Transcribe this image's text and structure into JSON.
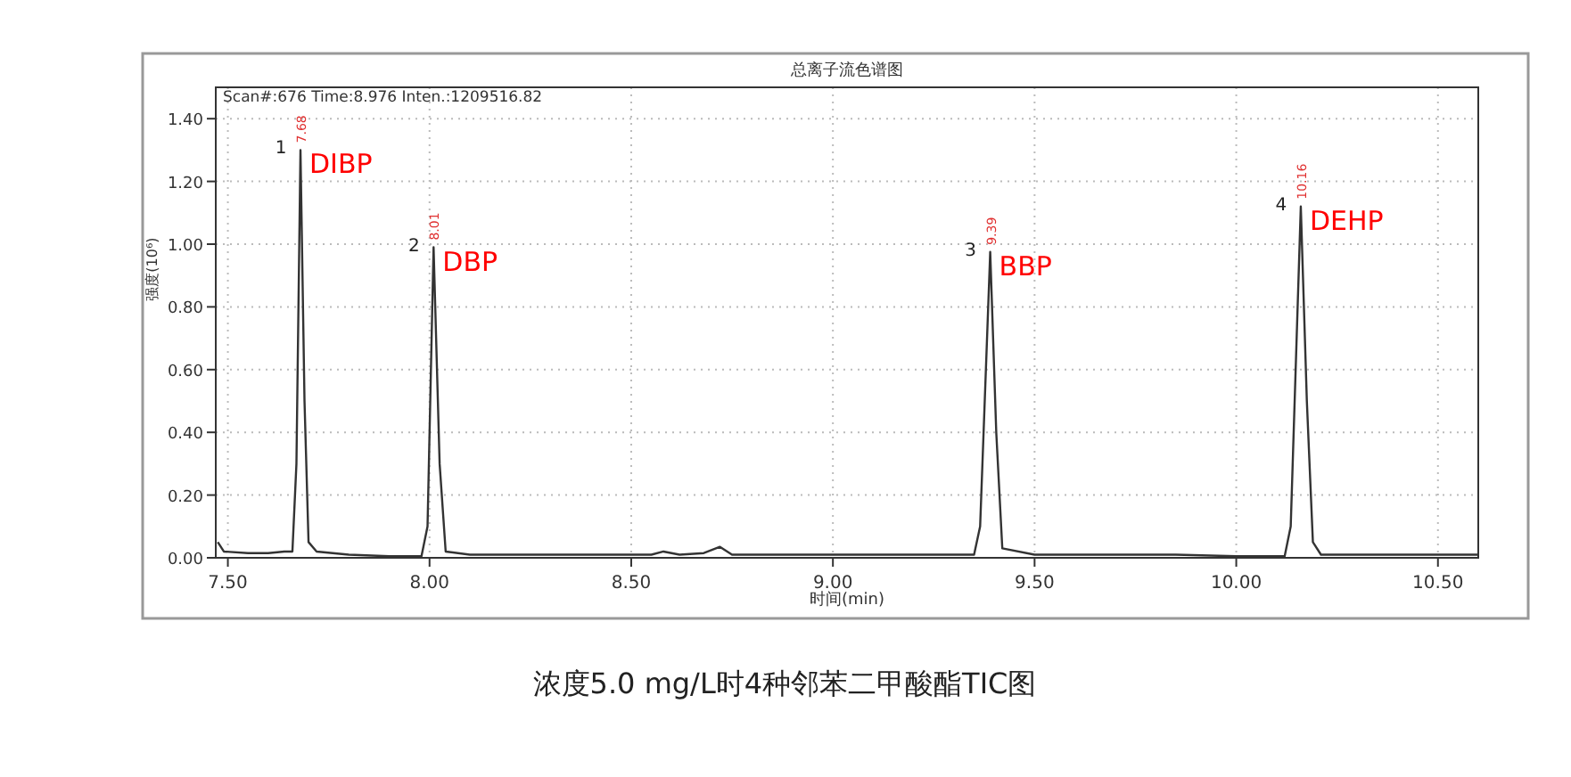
{
  "chart_data": {
    "type": "line",
    "title": "总离子流色谱图",
    "xlabel": "时间(min)",
    "ylabel": "强度(10⁶)",
    "x": [
      7.475,
      7.49,
      7.55,
      7.6,
      7.64,
      7.66,
      7.67,
      7.68,
      7.69,
      7.7,
      7.72,
      7.8,
      7.9,
      7.98,
      7.995,
      8.01,
      8.025,
      8.04,
      8.1,
      8.3,
      8.5,
      8.55,
      8.58,
      8.62,
      8.68,
      8.72,
      8.75,
      8.9,
      9.0,
      9.2,
      9.35,
      9.365,
      9.39,
      9.405,
      9.42,
      9.5,
      9.7,
      9.85,
      10.0,
      10.12,
      10.135,
      10.16,
      10.175,
      10.19,
      10.21,
      10.4,
      10.6
    ],
    "series": [
      {
        "color": "#333333",
        "values": [
          0.05,
          0.02,
          0.015,
          0.015,
          0.02,
          0.02,
          0.3,
          1.3,
          0.5,
          0.05,
          0.02,
          0.01,
          0.005,
          0.005,
          0.1,
          0.99,
          0.3,
          0.02,
          0.01,
          0.01,
          0.01,
          0.01,
          0.02,
          0.01,
          0.015,
          0.035,
          0.01,
          0.01,
          0.01,
          0.01,
          0.01,
          0.1,
          0.975,
          0.4,
          0.03,
          0.01,
          0.01,
          0.01,
          0.005,
          0.005,
          0.1,
          1.12,
          0.5,
          0.05,
          0.01,
          0.01,
          0.01
        ]
      }
    ],
    "xlim": [
      7.47,
      10.6
    ],
    "ylim": [
      0,
      1.5
    ],
    "xticks": [
      {
        "value": 7.5,
        "label": "7.50"
      },
      {
        "value": 8.0,
        "label": "8.00"
      },
      {
        "value": 8.5,
        "label": "8.50"
      },
      {
        "value": 9.0,
        "label": "9.00"
      },
      {
        "value": 9.5,
        "label": "9.50"
      },
      {
        "value": 10.0,
        "label": "10.00"
      },
      {
        "value": 10.5,
        "label": "10.50"
      }
    ],
    "yticks": [
      {
        "value": 0,
        "label": "0.00"
      },
      {
        "value": 0.2,
        "label": "0.20"
      },
      {
        "value": 0.4,
        "label": "0.40"
      },
      {
        "value": 0.6,
        "label": "0.60"
      },
      {
        "value": 0.8,
        "label": "0.80"
      },
      {
        "value": 1.0,
        "label": "1.00"
      },
      {
        "value": 1.2,
        "label": "1.20"
      },
      {
        "value": 1.4,
        "label": "1.40"
      }
    ],
    "grid": true,
    "marker": "none",
    "line_style": "solid",
    "annotations": [
      "Scan#:676  Time:8.976  Inten.:1209516.82",
      {
        "text": "1",
        "x": 7.68,
        "y": 1.3
      },
      {
        "text": "7.68",
        "x": 7.68,
        "y": 1.3
      },
      {
        "text": "DIBP",
        "x": 7.68,
        "y": 1.3
      },
      {
        "text": "2",
        "x": 8.01,
        "y": 0.99
      },
      {
        "text": "8.01",
        "x": 8.01,
        "y": 0.99
      },
      {
        "text": "DBP",
        "x": 8.01,
        "y": 0.99
      },
      {
        "text": "3",
        "x": 9.39,
        "y": 0.975
      },
      {
        "text": "9.39",
        "x": 9.39,
        "y": 0.975
      },
      {
        "text": "BBP",
        "x": 9.39,
        "y": 0.975
      },
      {
        "text": "4",
        "x": 10.16,
        "y": 1.12
      },
      {
        "text": "10.16",
        "x": 10.16,
        "y": 1.12
      },
      {
        "text": "DEHP",
        "x": 10.16,
        "y": 1.12
      },
      "浓度5.0 mg/L时4种邻苯二甲酸酯TIC图"
    ]
  }
}
